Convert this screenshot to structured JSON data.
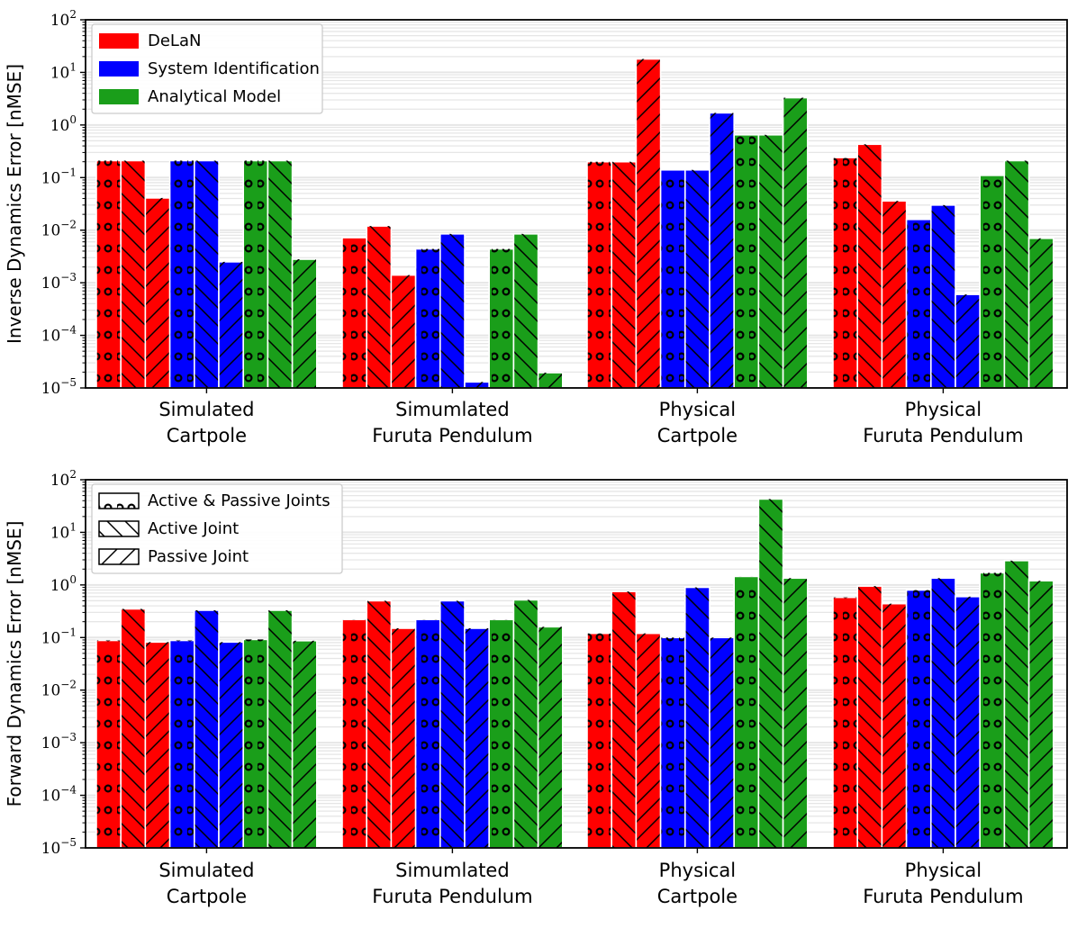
{
  "colors": {
    "delan": "#ff0000",
    "sysid": "#0000ff",
    "analytical": "#1a9e1a",
    "grid": "#e6e6e6",
    "hatch": "#000000"
  },
  "groups": [
    {
      "line1": "Simulated",
      "line2": "Cartpole"
    },
    {
      "line1": "Simumlated",
      "line2": "Furuta Pendulum"
    },
    {
      "line1": "Physical",
      "line2": "Cartpole"
    },
    {
      "line1": "Physical",
      "line2": "Furuta Pendulum"
    }
  ],
  "chart_data": [
    {
      "type": "bar",
      "yscale": "log",
      "ylabel": "Inverse Dynamics Error [nMSE]",
      "ylim": [
        1e-05,
        100
      ],
      "tick_labels": [
        {
          "base": "10",
          "exp": "−5"
        },
        {
          "base": "10",
          "exp": "−4"
        },
        {
          "base": "10",
          "exp": "−3"
        },
        {
          "base": "10",
          "exp": "−2"
        },
        {
          "base": "10",
          "exp": "−1"
        },
        {
          "base": "10",
          "exp": "0"
        },
        {
          "base": "10",
          "exp": "1"
        },
        {
          "base": "10",
          "exp": "2"
        }
      ],
      "legend": {
        "position": "top-left",
        "entries": [
          {
            "label": "DeLaN",
            "color": "#ff0000"
          },
          {
            "label": "System Identification",
            "color": "#0000ff"
          },
          {
            "label": "Analytical Model",
            "color": "#1a9e1a"
          }
        ]
      },
      "series": [
        {
          "name": "DeLaN",
          "pattern": "circles",
          "values": [
            0.21,
            0.0072,
            0.2,
            0.24
          ]
        },
        {
          "name": "DeLaN",
          "pattern": "backslash",
          "values": [
            0.21,
            0.012,
            0.2,
            0.43
          ]
        },
        {
          "name": "DeLaN",
          "pattern": "slash",
          "values": [
            0.041,
            0.0014,
            18,
            0.036
          ]
        },
        {
          "name": "System Identification",
          "pattern": "circles",
          "values": [
            0.21,
            0.0044,
            0.14,
            0.016
          ]
        },
        {
          "name": "System Identification",
          "pattern": "backslash",
          "values": [
            0.21,
            0.0085,
            0.14,
            0.03
          ]
        },
        {
          "name": "System Identification",
          "pattern": "slash",
          "values": [
            0.0025,
            1.3e-05,
            1.7,
            0.0006
          ]
        },
        {
          "name": "Analytical Model",
          "pattern": "circles",
          "values": [
            0.21,
            0.0044,
            0.65,
            0.11
          ]
        },
        {
          "name": "Analytical Model",
          "pattern": "backslash",
          "values": [
            0.21,
            0.0085,
            0.65,
            0.21
          ]
        },
        {
          "name": "Analytical Model",
          "pattern": "slash",
          "values": [
            0.0028,
            1.95e-05,
            3.3,
            0.007
          ]
        }
      ]
    },
    {
      "type": "bar",
      "yscale": "log",
      "ylabel": "Forward Dynamics Error [nMSE]",
      "ylim": [
        1e-05,
        100
      ],
      "tick_labels": [
        {
          "base": "10",
          "exp": "−5"
        },
        {
          "base": "10",
          "exp": "−4"
        },
        {
          "base": "10",
          "exp": "−3"
        },
        {
          "base": "10",
          "exp": "−2"
        },
        {
          "base": "10",
          "exp": "−1"
        },
        {
          "base": "10",
          "exp": "0"
        },
        {
          "base": "10",
          "exp": "1"
        },
        {
          "base": "10",
          "exp": "2"
        }
      ],
      "legend": {
        "position": "top-left",
        "entries": [
          {
            "label": "Active & Passive Joints",
            "pattern": "circles"
          },
          {
            "label": "Active Joint",
            "pattern": "backslash"
          },
          {
            "label": "Passive Joint",
            "pattern": "slash"
          }
        ]
      },
      "series": [
        {
          "name": "DeLaN",
          "pattern": "circles",
          "values": [
            0.088,
            0.22,
            0.12,
            0.58
          ]
        },
        {
          "name": "DeLaN",
          "pattern": "backslash",
          "values": [
            0.35,
            0.5,
            0.75,
            0.95
          ]
        },
        {
          "name": "DeLaN",
          "pattern": "slash",
          "values": [
            0.082,
            0.15,
            0.12,
            0.44
          ]
        },
        {
          "name": "System Identification",
          "pattern": "circles",
          "values": [
            0.088,
            0.22,
            0.1,
            0.8
          ]
        },
        {
          "name": "System Identification",
          "pattern": "backslash",
          "values": [
            0.33,
            0.5,
            0.9,
            1.35
          ]
        },
        {
          "name": "System Identification",
          "pattern": "slash",
          "values": [
            0.082,
            0.15,
            0.1,
            0.6
          ]
        },
        {
          "name": "Analytical Model",
          "pattern": "circles",
          "values": [
            0.092,
            0.22,
            1.45,
            1.7
          ]
        },
        {
          "name": "Analytical Model",
          "pattern": "backslash",
          "values": [
            0.33,
            0.52,
            43,
            2.9
          ]
        },
        {
          "name": "Analytical Model",
          "pattern": "slash",
          "values": [
            0.087,
            0.16,
            1.35,
            1.2
          ]
        }
      ]
    }
  ]
}
